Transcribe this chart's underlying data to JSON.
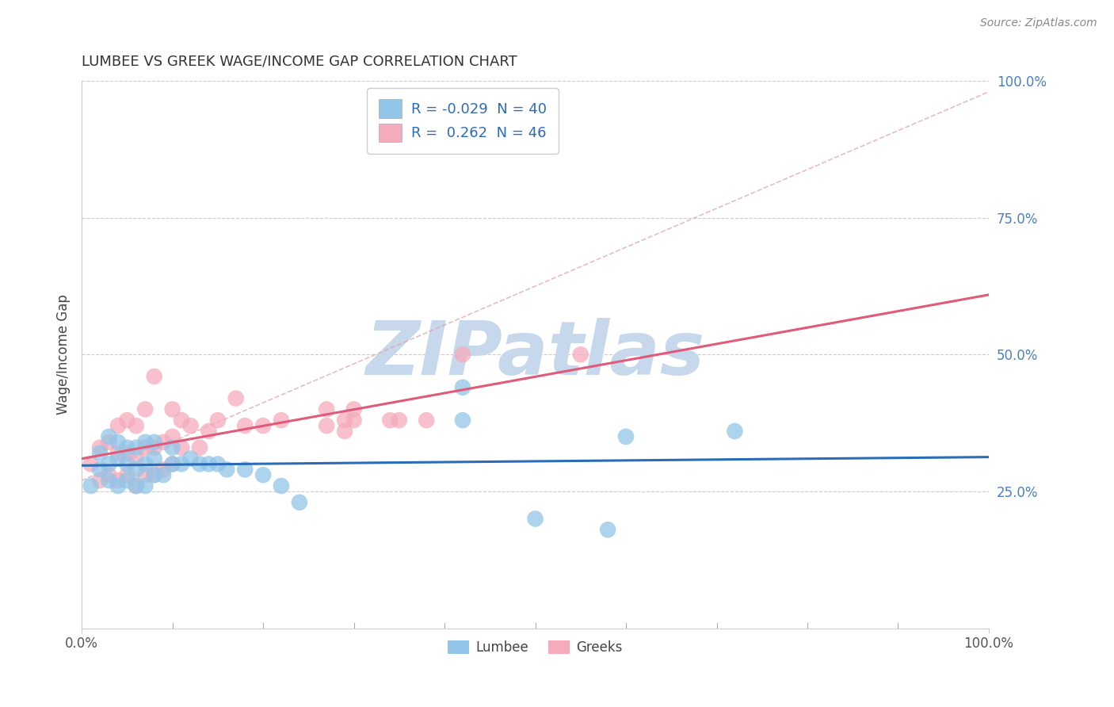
{
  "title": "LUMBEE VS GREEK WAGE/INCOME GAP CORRELATION CHART",
  "source_text": "Source: ZipAtlas.com",
  "ylabel": "Wage/Income Gap",
  "lumbee_R": -0.029,
  "lumbee_N": 40,
  "greek_R": 0.262,
  "greek_N": 46,
  "lumbee_color": "#92C5E8",
  "greek_color": "#F5ABBC",
  "lumbee_line_color": "#2B6CB8",
  "greek_line_color": "#E05A7A",
  "diagonal_color": "#E5A0B0",
  "background_color": "#FFFFFF",
  "watermark_text": "ZIPatlas",
  "watermark_color": "#C8D8EC",
  "lumbee_x": [
    0.01,
    0.02,
    0.02,
    0.03,
    0.03,
    0.03,
    0.04,
    0.04,
    0.04,
    0.05,
    0.05,
    0.05,
    0.06,
    0.06,
    0.06,
    0.07,
    0.07,
    0.07,
    0.08,
    0.08,
    0.08,
    0.09,
    0.1,
    0.1,
    0.11,
    0.12,
    0.13,
    0.14,
    0.15,
    0.16,
    0.18,
    0.2,
    0.22,
    0.24,
    0.42,
    0.42,
    0.5,
    0.58,
    0.6,
    0.72
  ],
  "lumbee_y": [
    0.26,
    0.29,
    0.32,
    0.27,
    0.3,
    0.35,
    0.26,
    0.31,
    0.34,
    0.27,
    0.3,
    0.33,
    0.26,
    0.29,
    0.33,
    0.26,
    0.3,
    0.34,
    0.28,
    0.31,
    0.34,
    0.28,
    0.3,
    0.33,
    0.3,
    0.31,
    0.3,
    0.3,
    0.3,
    0.29,
    0.29,
    0.28,
    0.26,
    0.23,
    0.38,
    0.44,
    0.2,
    0.18,
    0.35,
    0.36
  ],
  "greek_x": [
    0.01,
    0.02,
    0.02,
    0.03,
    0.03,
    0.04,
    0.04,
    0.04,
    0.05,
    0.05,
    0.05,
    0.06,
    0.06,
    0.06,
    0.07,
    0.07,
    0.07,
    0.08,
    0.08,
    0.08,
    0.09,
    0.09,
    0.1,
    0.1,
    0.1,
    0.11,
    0.11,
    0.12,
    0.13,
    0.14,
    0.15,
    0.17,
    0.18,
    0.2,
    0.22,
    0.27,
    0.27,
    0.29,
    0.29,
    0.3,
    0.3,
    0.34,
    0.35,
    0.38,
    0.42,
    0.55
  ],
  "greek_y": [
    0.3,
    0.27,
    0.33,
    0.28,
    0.34,
    0.27,
    0.32,
    0.37,
    0.28,
    0.32,
    0.38,
    0.26,
    0.31,
    0.37,
    0.28,
    0.33,
    0.4,
    0.28,
    0.33,
    0.46,
    0.29,
    0.34,
    0.3,
    0.35,
    0.4,
    0.33,
    0.38,
    0.37,
    0.33,
    0.36,
    0.38,
    0.42,
    0.37,
    0.37,
    0.38,
    0.37,
    0.4,
    0.36,
    0.38,
    0.38,
    0.4,
    0.38,
    0.38,
    0.38,
    0.5,
    0.5
  ],
  "xlim": [
    0.0,
    1.0
  ],
  "ylim": [
    0.0,
    1.0
  ],
  "yticks": [
    0.25,
    0.5,
    0.75,
    1.0
  ],
  "ytick_labels": [
    "25.0%",
    "50.0%",
    "75.0%",
    "100.0%"
  ],
  "xtick_labels": [
    "0.0%",
    "100.0%"
  ],
  "xticks": [
    0.0,
    1.0
  ],
  "lumbee_legend_label": "R = -0.029  N = 40",
  "greek_legend_label": "R =  0.262  N = 46",
  "lumbee_bottom_label": "Lumbee",
  "greek_bottom_label": "Greeks"
}
